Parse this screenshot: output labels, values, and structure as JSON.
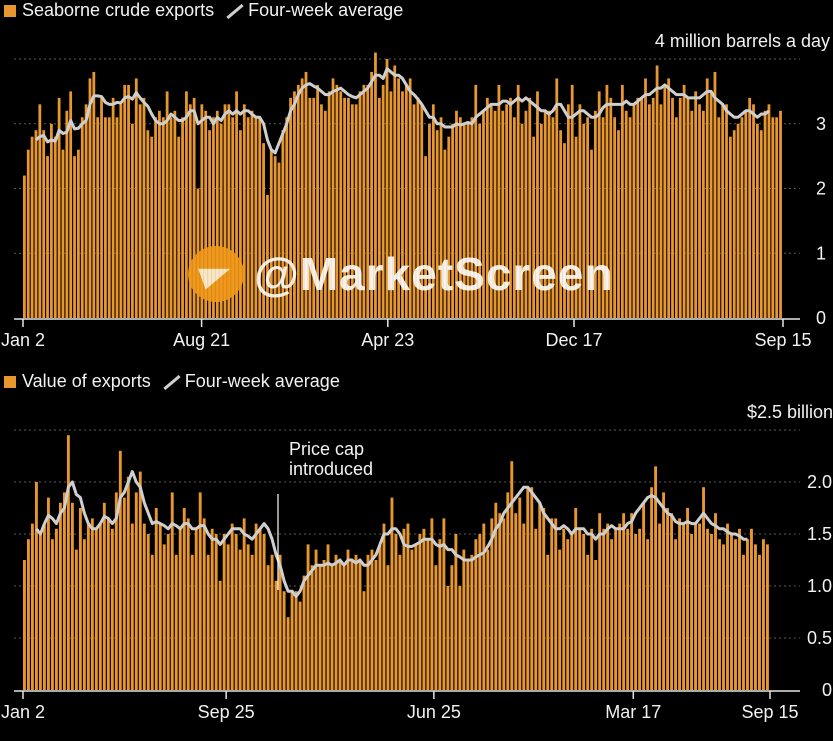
{
  "chart_data": [
    {
      "type": "bar",
      "legend": [
        "Seaborne crude exports",
        "Four-week average"
      ],
      "unit_label": "4 million barrels a day",
      "x_tick_labels": [
        "Jan 2",
        "Aug 21",
        "Apr 23",
        "Dec 17",
        "Sep 15"
      ],
      "y_tick_labels": [
        "0",
        "1",
        "2",
        "3"
      ],
      "ylim": [
        0,
        4
      ],
      "grid": true,
      "colors": {
        "bars": "#e8962e",
        "line": "#cfcfcf"
      },
      "series": [
        {
          "name": "Seaborne crude exports",
          "values": [
            2.2,
            2.6,
            2.8,
            2.9,
            3.3,
            2.9,
            2.5,
            3.0,
            2.8,
            3.4,
            2.6,
            3.2,
            3.5,
            2.5,
            2.6,
            3.1,
            3.3,
            3.7,
            3.8,
            3.1,
            3.4,
            3.1,
            3.1,
            3.4,
            3.1,
            3.3,
            3.6,
            3.6,
            3.0,
            3.7,
            3.3,
            3.4,
            2.9,
            2.8,
            3.1,
            3.2,
            3.1,
            3.5,
            3.1,
            3.2,
            2.8,
            3.1,
            3.5,
            3.3,
            3.4,
            2.0,
            3.3,
            3.2,
            2.9,
            3.1,
            3.2,
            3.0,
            3.3,
            3.3,
            3.1,
            3.5,
            2.9,
            3.3,
            3.1,
            3.2,
            3.1,
            3.1,
            2.7,
            1.9,
            2.6,
            2.5,
            2.4,
            2.9,
            3.1,
            3.4,
            3.5,
            3.6,
            3.7,
            3.8,
            3.4,
            3.4,
            3.6,
            3.3,
            3.2,
            3.5,
            3.7,
            3.6,
            3.5,
            3.4,
            3.4,
            3.3,
            3.3,
            3.5,
            3.6,
            3.6,
            3.8,
            4.1,
            3.4,
            3.6,
            4.0,
            3.5,
            3.9,
            3.7,
            3.5,
            3.6,
            3.7,
            3.3,
            3.4,
            3.3,
            2.5,
            3.0,
            3.3,
            2.9,
            3.1,
            2.6,
            2.8,
            3.0,
            3.2,
            3.1,
            3.0,
            3.0,
            3.1,
            3.6,
            3.0,
            3.2,
            3.4,
            3.3,
            3.2,
            3.6,
            3.2,
            3.3,
            3.4,
            3.1,
            3.6,
            3.0,
            3.2,
            3.4,
            2.8,
            3.5,
            3.0,
            3.2,
            3.2,
            3.1,
            3.7,
            2.9,
            2.7,
            3.3,
            3.6,
            2.8,
            3.3,
            3.0,
            3.1,
            2.6,
            3.2,
            3.5,
            3.1,
            3.6,
            3.4,
            3.1,
            2.9,
            3.6,
            3.2,
            3.1,
            3.3,
            3.4,
            3.4,
            3.7,
            3.3,
            3.4,
            3.9,
            3.3,
            3.6,
            3.7,
            3.4,
            3.1,
            3.4,
            3.6,
            3.4,
            3.2,
            3.5,
            3.3,
            3.2,
            3.7,
            3.5,
            3.8,
            3.1,
            3.3,
            3.3,
            2.8,
            2.9,
            3.0,
            3.1,
            3.2,
            3.4,
            3.3,
            3.0,
            2.9,
            3.2,
            3.3,
            3.1,
            3.1,
            3.2
          ]
        },
        {
          "name": "Four-week average",
          "values": [
            null,
            null,
            null,
            2.75,
            2.8,
            2.82,
            2.72,
            2.75,
            2.73,
            2.9,
            2.85,
            2.87,
            3.05,
            2.92,
            2.93,
            3.0,
            3.05,
            3.3,
            3.43,
            3.43,
            3.42,
            3.33,
            3.3,
            3.3,
            3.33,
            3.32,
            3.4,
            3.42,
            3.38,
            3.48,
            3.4,
            3.33,
            3.27,
            3.15,
            3.05,
            3.0,
            3.0,
            3.05,
            3.15,
            3.1,
            3.05,
            3.05,
            3.1,
            3.2,
            3.2,
            3.0,
            3.05,
            3.1,
            3.1,
            3.0,
            3.1,
            3.05,
            3.15,
            3.2,
            3.15,
            3.2,
            3.15,
            3.2,
            3.2,
            3.15,
            3.1,
            3.1,
            3.0,
            2.75,
            2.6,
            2.55,
            2.7,
            2.85,
            3.0,
            3.2,
            3.3,
            3.45,
            3.55,
            3.6,
            3.62,
            3.58,
            3.55,
            3.5,
            3.45,
            3.45,
            3.5,
            3.52,
            3.55,
            3.5,
            3.45,
            3.42,
            3.4,
            3.45,
            3.5,
            3.55,
            3.65,
            3.75,
            3.75,
            3.7,
            3.85,
            3.8,
            3.75,
            3.75,
            3.7,
            3.6,
            3.5,
            3.45,
            3.38,
            3.3,
            3.2,
            3.1,
            3.1,
            3.0,
            3.0,
            2.95,
            2.95,
            2.95,
            3.0,
            2.98,
            3.0,
            3.02,
            3.0,
            3.1,
            3.15,
            3.2,
            3.25,
            3.3,
            3.3,
            3.3,
            3.35,
            3.35,
            3.3,
            3.35,
            3.4,
            3.35,
            3.4,
            3.35,
            3.3,
            3.25,
            3.2,
            3.2,
            3.15,
            3.2,
            3.3,
            3.3,
            3.2,
            3.1,
            3.1,
            3.15,
            3.2,
            3.2,
            3.15,
            3.1,
            3.1,
            3.15,
            3.25,
            3.3,
            3.3,
            3.3,
            3.3,
            3.3,
            3.35,
            3.3,
            3.3,
            3.35,
            3.4,
            3.45,
            3.45,
            3.5,
            3.55,
            3.55,
            3.6,
            3.55,
            3.5,
            3.45,
            3.45,
            3.45,
            3.4,
            3.4,
            3.4,
            3.4,
            3.45,
            3.5,
            3.5,
            3.4,
            3.35,
            3.3,
            3.2,
            3.15,
            3.1,
            3.1,
            3.15,
            3.2,
            3.2,
            3.15,
            3.1,
            3.15,
            3.15,
            3.2
          ]
        }
      ]
    },
    {
      "type": "bar",
      "legend": [
        "Value of exports",
        "Four-week average"
      ],
      "unit_label": "$2.5 billion",
      "x_tick_labels": [
        "Jan 2",
        "Sep 25",
        "Jun 25",
        "Mar 17",
        "Sep 15"
      ],
      "y_tick_labels": [
        "0",
        "0.5",
        "1.0",
        "1.5",
        "2.0"
      ],
      "ylim": [
        0,
        2.5
      ],
      "grid": true,
      "annotation": "Price cap\nintroduced",
      "colors": {
        "bars": "#e8962e",
        "line": "#cfcfcf"
      },
      "series": [
        {
          "name": "Value of exports",
          "values": [
            1.25,
            1.45,
            1.6,
            2.0,
            1.5,
            1.6,
            1.85,
            1.45,
            1.55,
            1.8,
            1.9,
            2.45,
            1.8,
            1.35,
            1.75,
            1.45,
            1.6,
            1.65,
            1.55,
            1.6,
            1.8,
            1.65,
            1.55,
            1.9,
            2.3,
            1.85,
            2.05,
            1.6,
            1.9,
            2.1,
            1.6,
            1.5,
            1.3,
            1.75,
            1.6,
            1.4,
            1.5,
            1.9,
            1.3,
            1.55,
            1.75,
            1.65,
            1.3,
            1.55,
            1.9,
            1.65,
            1.3,
            1.55,
            1.5,
            1.05,
            1.5,
            1.4,
            1.6,
            1.5,
            1.35,
            1.65,
            1.4,
            1.3,
            1.6,
            1.55,
            1.5,
            1.2,
            1.3,
            1.05,
            1.3,
            0.95,
            0.7,
            0.95,
            0.95,
            0.85,
            1.1,
            1.4,
            1.2,
            1.35,
            1.2,
            1.25,
            1.4,
            1.2,
            1.3,
            1.25,
            1.2,
            1.35,
            1.25,
            1.3,
            1.25,
            0.95,
            1.3,
            1.35,
            1.25,
            1.4,
            1.6,
            1.2,
            1.85,
            1.5,
            1.3,
            1.55,
            1.6,
            1.35,
            1.4,
            1.5,
            1.55,
            1.45,
            1.65,
            1.2,
            1.45,
            1.65,
            1.0,
            1.2,
            1.5,
            1.0,
            1.35,
            1.25,
            1.3,
            1.45,
            1.5,
            1.6,
            1.35,
            1.65,
            1.8,
            1.7,
            1.65,
            1.9,
            2.2,
            1.7,
            1.85,
            1.6,
            1.95,
            1.95,
            1.55,
            1.8,
            1.75,
            1.3,
            1.65,
            1.65,
            1.35,
            1.55,
            1.45,
            1.5,
            1.75,
            1.55,
            1.5,
            1.3,
            1.55,
            1.25,
            1.7,
            1.55,
            1.6,
            1.45,
            1.55,
            1.6,
            1.7,
            1.55,
            1.7,
            1.5,
            1.55,
            1.8,
            1.45,
            1.95,
            2.15,
            1.6,
            1.9,
            1.75,
            1.7,
            1.45,
            1.65,
            1.6,
            1.75,
            1.5,
            1.6,
            1.6,
            1.95,
            1.55,
            1.5,
            1.7,
            1.45,
            1.4,
            1.6,
            1.5,
            1.45,
            1.55,
            1.3,
            1.45,
            1.55,
            1.4,
            1.3,
            1.45,
            1.4
          ]
        },
        {
          "name": "Four-week average",
          "values": [
            null,
            null,
            null,
            1.55,
            1.5,
            1.6,
            1.68,
            1.65,
            1.6,
            1.7,
            1.75,
            1.95,
            2.0,
            1.88,
            1.85,
            1.7,
            1.6,
            1.55,
            1.55,
            1.6,
            1.67,
            1.65,
            1.6,
            1.65,
            1.85,
            1.9,
            2.0,
            2.1,
            2.0,
            1.95,
            1.8,
            1.7,
            1.6,
            1.62,
            1.6,
            1.58,
            1.55,
            1.6,
            1.58,
            1.55,
            1.6,
            1.6,
            1.55,
            1.55,
            1.58,
            1.58,
            1.5,
            1.45,
            1.45,
            1.4,
            1.45,
            1.5,
            1.55,
            1.55,
            1.55,
            1.5,
            1.48,
            1.45,
            1.5,
            1.55,
            1.6,
            1.55,
            1.45,
            1.3,
            1.2,
            1.05,
            0.95,
            0.95,
            0.9,
            0.95,
            1.05,
            1.1,
            1.15,
            1.2,
            1.2,
            1.2,
            1.22,
            1.2,
            1.22,
            1.25,
            1.2,
            1.25,
            1.25,
            1.22,
            1.25,
            1.2,
            1.2,
            1.25,
            1.3,
            1.4,
            1.5,
            1.5,
            1.55,
            1.55,
            1.5,
            1.4,
            1.38,
            1.38,
            1.4,
            1.42,
            1.45,
            1.45,
            1.45,
            1.4,
            1.38,
            1.4,
            1.35,
            1.35,
            1.3,
            1.28,
            1.25,
            1.25,
            1.25,
            1.28,
            1.3,
            1.32,
            1.38,
            1.45,
            1.55,
            1.6,
            1.7,
            1.75,
            1.8,
            1.85,
            1.9,
            1.95,
            1.95,
            1.9,
            1.85,
            1.8,
            1.7,
            1.65,
            1.6,
            1.55,
            1.55,
            1.58,
            1.55,
            1.5,
            1.55,
            1.55,
            1.55,
            1.5,
            1.5,
            1.45,
            1.5,
            1.5,
            1.55,
            1.58,
            1.55,
            1.55,
            1.55,
            1.6,
            1.62,
            1.7,
            1.75,
            1.8,
            1.85,
            1.87,
            1.85,
            1.8,
            1.75,
            1.7,
            1.68,
            1.62,
            1.6,
            1.6,
            1.62,
            1.6,
            1.6,
            1.65,
            1.7,
            1.65,
            1.6,
            1.58,
            1.55,
            1.55,
            1.52,
            1.5,
            1.5,
            1.48,
            1.45,
            1.45
          ]
        }
      ]
    }
  ],
  "watermark": "@MarketScreen"
}
